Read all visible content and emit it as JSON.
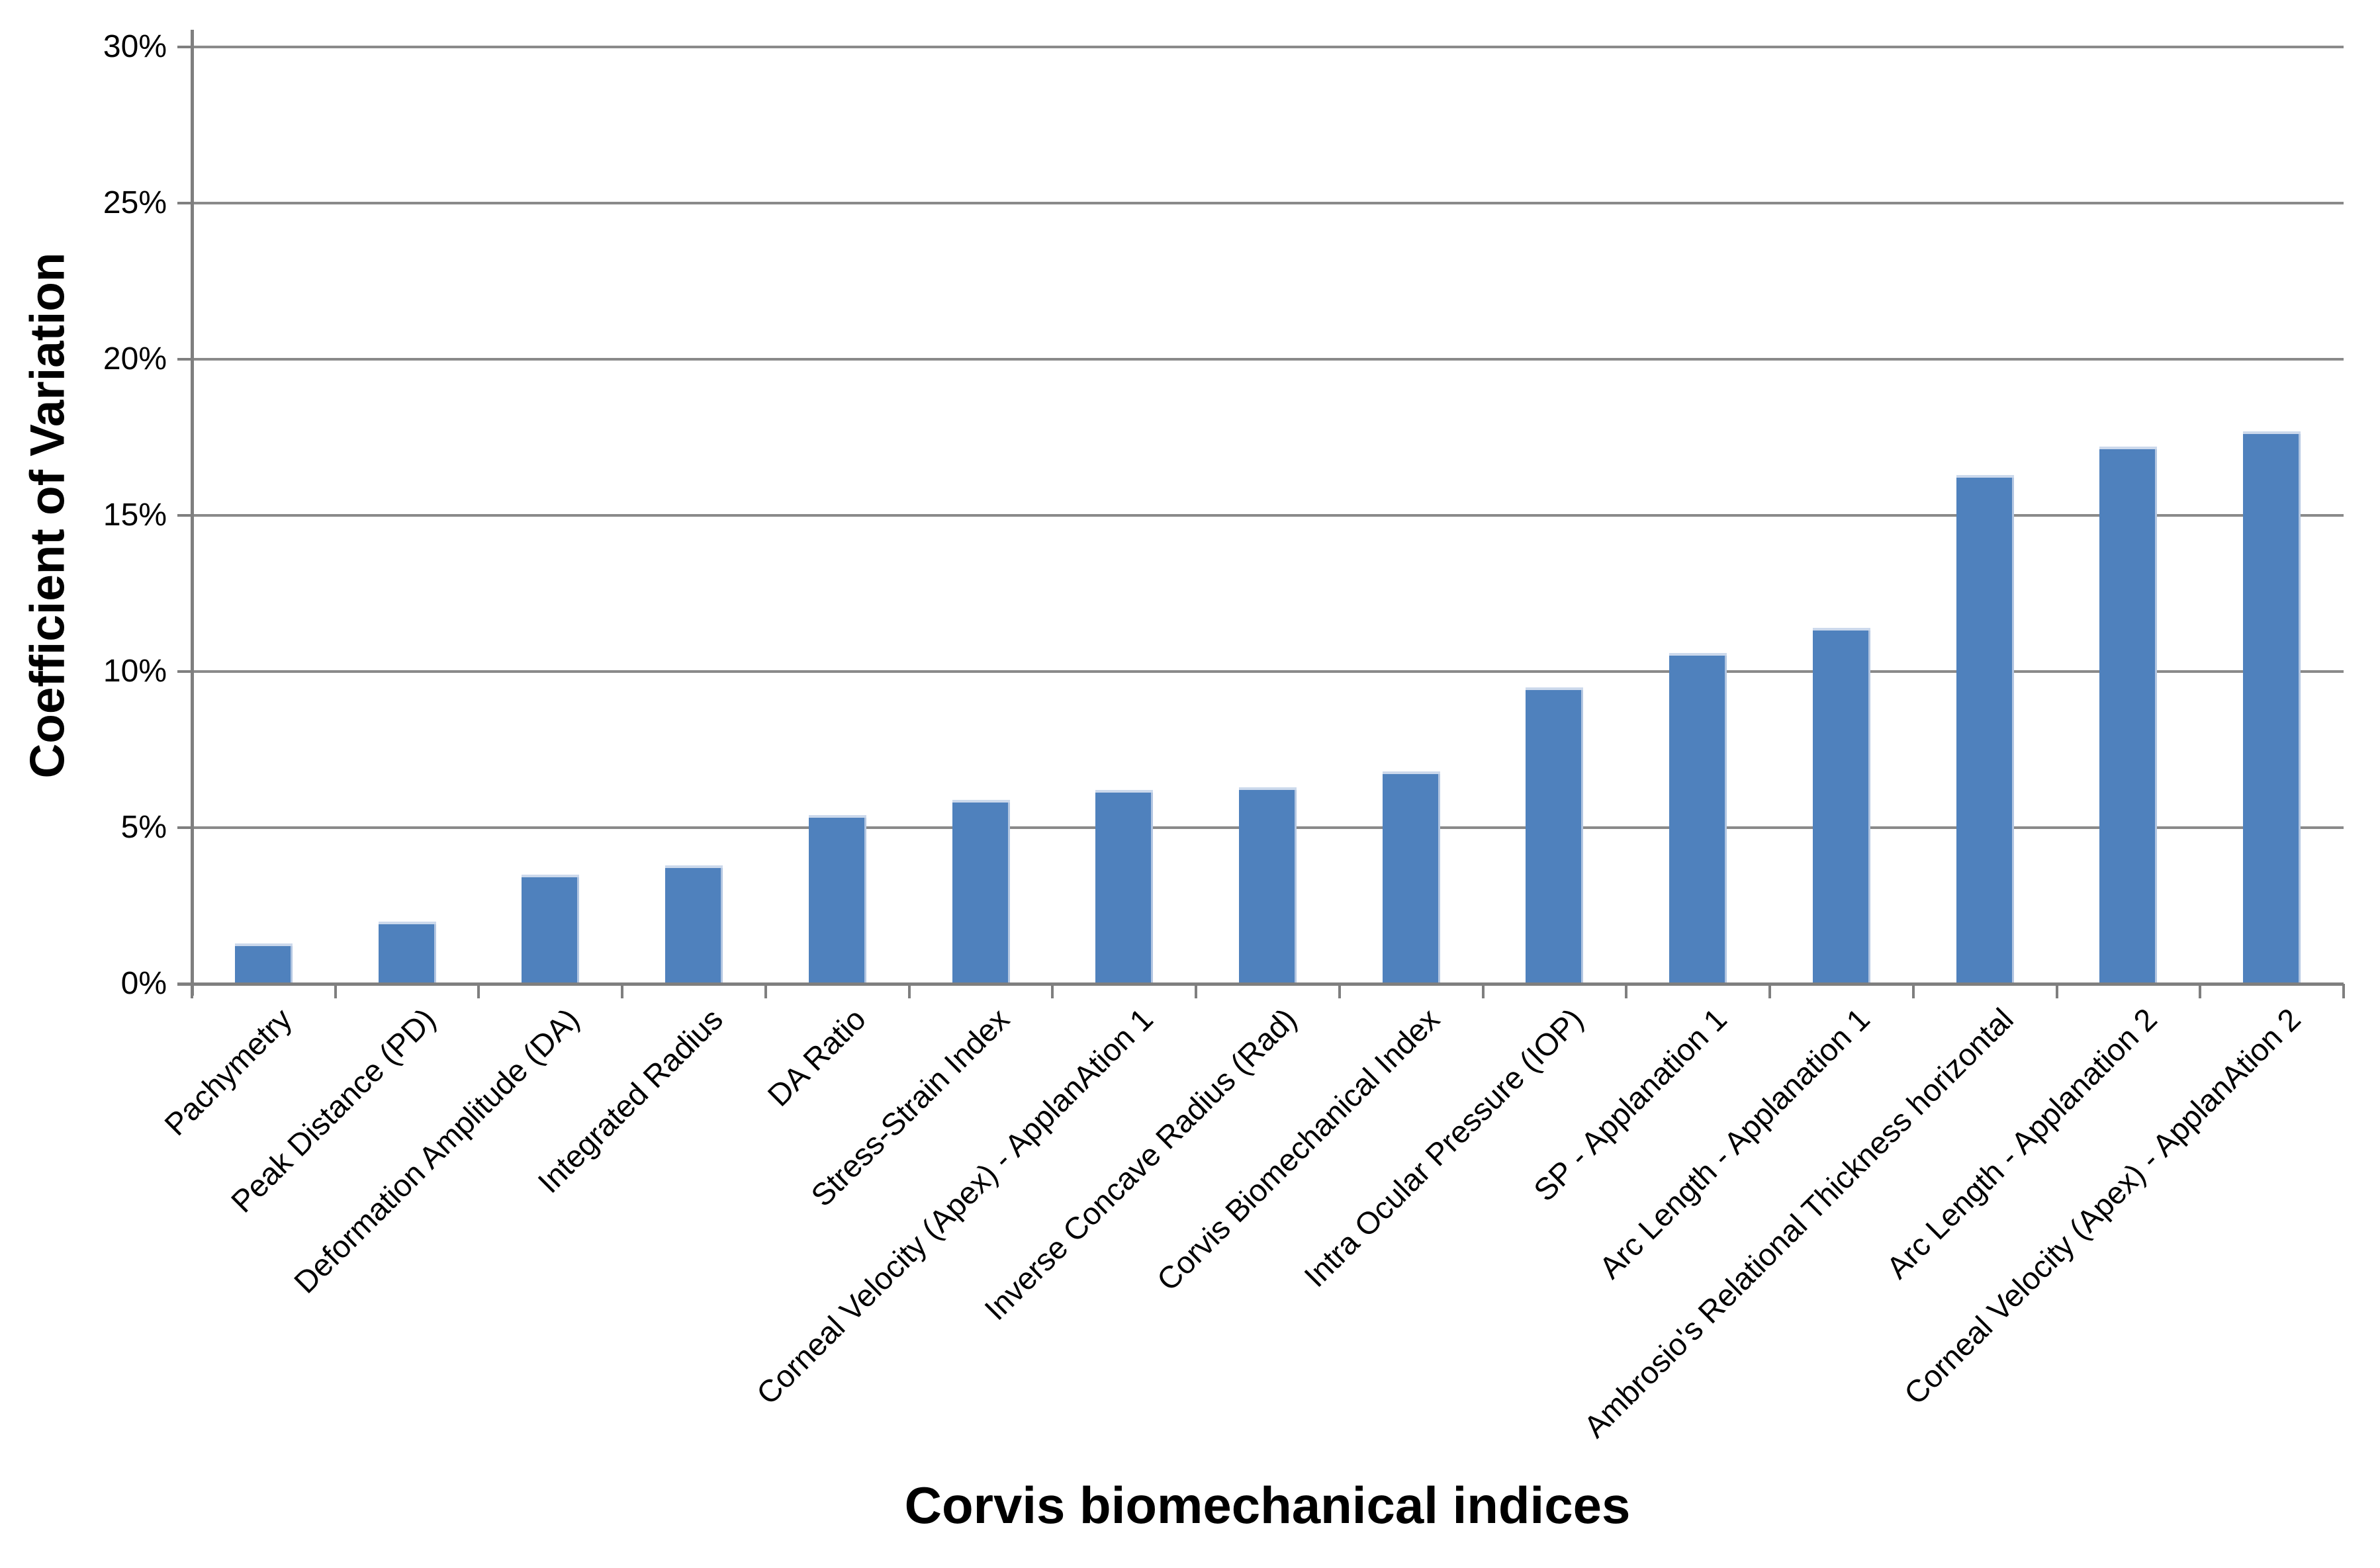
{
  "chart_data": {
    "type": "bar",
    "title": "",
    "xlabel": "Corvis biomechanical indices",
    "ylabel": "Coefficient of Variation",
    "categories": [
      "Pachymetry",
      "Peak Distance (PD)",
      "Deformation Amplitude (DA)",
      "Integrated Radius",
      "DA Ratio",
      "Stress-Strain Index",
      "Corneal Velocity (Apex) - ApplanAtion 1",
      "Inverse Concave Radius (Rad)",
      "Corvis Biomechanical Index",
      "Intra Ocular Pressure (IOP)",
      "SP - Applanation 1",
      "Arc Length - Applanation 1",
      "Ambrosio's Relational Thickness horizontal",
      "Arc Length - Applanation 2",
      "Corneal Velocity (Apex) - ApplanAtion 2"
    ],
    "values": [
      1.3,
      2.0,
      3.5,
      3.8,
      5.4,
      5.9,
      6.2,
      6.3,
      6.8,
      9.5,
      10.6,
      11.4,
      16.3,
      17.2,
      17.7
    ],
    "value_unit": "%",
    "ylim": [
      0,
      30
    ],
    "ytick_step": 5,
    "ytick_labels": [
      "0%",
      "5%",
      "10%",
      "15%",
      "20%",
      "25%",
      "30%"
    ],
    "grid": true,
    "legend_position": "none",
    "bar_color": "#4F81BD",
    "bar_top_highlight_color": "#CCD9EC",
    "gridline_color": "#8A8A8A",
    "axis_color": "#7F7F7F",
    "text_color": "#000000",
    "background_color": "#FFFFFF"
  }
}
